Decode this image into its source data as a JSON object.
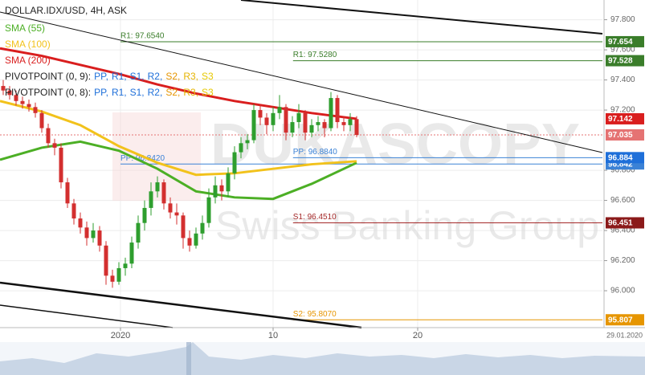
{
  "chart_data": {
    "type": "candlestick",
    "title": "DOLLAR.IDX/USD, 4H, ASK",
    "up_color": "#2e9e2e",
    "down_color": "#d32f2f",
    "open": [
      97.36,
      97.33,
      97.3,
      97.26,
      97.24,
      97.22,
      97.18,
      97.08,
      96.98,
      96.95,
      96.72,
      96.58,
      96.48,
      96.42,
      96.35,
      96.4,
      96.3,
      96.1,
      96.06,
      96.15,
      96.18,
      96.32,
      96.45,
      96.55,
      96.66,
      96.72,
      96.58,
      96.52,
      96.5,
      96.35,
      96.3,
      96.38,
      96.45,
      96.62,
      96.7,
      96.66,
      96.78,
      96.92,
      96.98,
      97.0,
      97.2,
      97.15,
      97.1,
      97.18,
      97.22,
      97.05,
      97.12,
      97.18,
      97.05,
      97.1,
      97.12,
      97.08,
      97.28,
      97.12,
      97.1,
      97.14
    ],
    "high": [
      97.4,
      97.36,
      97.33,
      97.29,
      97.27,
      97.25,
      97.2,
      97.11,
      97.01,
      96.98,
      96.75,
      96.61,
      96.52,
      96.46,
      96.45,
      96.43,
      96.33,
      96.14,
      96.19,
      96.22,
      96.36,
      96.5,
      96.6,
      96.72,
      96.76,
      96.74,
      96.62,
      96.58,
      96.52,
      96.4,
      96.42,
      96.5,
      96.68,
      96.76,
      96.74,
      96.82,
      96.96,
      97.02,
      97.04,
      97.24,
      97.24,
      97.18,
      97.22,
      97.3,
      97.24,
      97.16,
      97.24,
      97.2,
      97.14,
      97.16,
      97.14,
      97.32,
      97.3,
      97.16,
      97.18,
      97.16
    ],
    "low": [
      97.3,
      97.27,
      97.23,
      97.21,
      97.19,
      97.15,
      97.05,
      96.95,
      96.9,
      96.68,
      96.55,
      96.44,
      96.38,
      96.3,
      96.32,
      96.26,
      96.04,
      96.02,
      96.04,
      96.1,
      96.15,
      96.28,
      96.4,
      96.5,
      96.62,
      96.54,
      96.48,
      96.44,
      96.28,
      96.26,
      96.28,
      96.34,
      96.42,
      96.58,
      96.6,
      96.62,
      96.74,
      96.88,
      96.94,
      96.98,
      97.1,
      97.04,
      97.06,
      97.14,
      97.0,
      97.02,
      97.08,
      97.0,
      97.02,
      97.06,
      97.02,
      97.06,
      97.08,
      97.06,
      97.06,
      97.02
    ],
    "close": [
      97.33,
      97.3,
      97.26,
      97.24,
      97.22,
      97.18,
      97.08,
      96.98,
      96.95,
      96.72,
      96.58,
      96.48,
      96.42,
      96.35,
      96.4,
      96.3,
      96.1,
      96.06,
      96.15,
      96.18,
      96.32,
      96.45,
      96.55,
      96.66,
      96.72,
      96.58,
      96.52,
      96.5,
      96.35,
      96.3,
      96.38,
      96.45,
      96.62,
      96.7,
      96.66,
      96.78,
      96.92,
      96.98,
      97.0,
      97.2,
      97.15,
      97.1,
      97.18,
      97.22,
      97.05,
      97.12,
      97.18,
      97.05,
      97.1,
      97.12,
      97.08,
      97.28,
      97.12,
      97.1,
      97.14,
      97.035
    ],
    "indicators": [
      {
        "name": "SMA (55)",
        "color": "#4caf25",
        "x": [
          -0.5,
          6,
          12,
          18,
          24,
          30,
          36,
          42,
          48,
          55
        ],
        "values": [
          96.87,
          96.95,
          96.99,
          96.93,
          96.81,
          96.66,
          96.62,
          96.61,
          96.71,
          96.85
        ]
      },
      {
        "name": "SMA (100)",
        "color": "#f2c21b",
        "x": [
          -0.5,
          6,
          12,
          18,
          24,
          30,
          36,
          42,
          48,
          55
        ],
        "values": [
          97.26,
          97.19,
          97.1,
          96.96,
          96.85,
          96.77,
          96.78,
          96.81,
          96.84,
          96.86
        ]
      },
      {
        "name": "SMA (200)",
        "color": "#d91e1e",
        "x": [
          -0.5,
          6,
          12,
          18,
          24,
          30,
          36,
          42,
          48,
          55
        ],
        "values": [
          97.61,
          97.56,
          97.5,
          97.44,
          97.37,
          97.31,
          97.26,
          97.22,
          97.18,
          97.142
        ]
      }
    ],
    "pivot_legend": [
      {
        "label": "PIVOTPOINT (0, 9):",
        "items": [
          {
            "text": "PP,",
            "color": "#1e6fd9"
          },
          {
            "text": "R1,",
            "color": "#1e6fd9"
          },
          {
            "text": "S1,",
            "color": "#1e6fd9"
          },
          {
            "text": "R2,",
            "color": "#1e6fd9"
          },
          {
            "text": "S2,",
            "color": "#e69500"
          },
          {
            "text": "R3,",
            "color": "#e6b400"
          },
          {
            "text": "S3",
            "color": "#e6c800"
          }
        ]
      },
      {
        "label": "PIVOTPOINT (0, 8):",
        "items": [
          {
            "text": "PP,",
            "color": "#1e6fd9"
          },
          {
            "text": "R1,",
            "color": "#1e6fd9"
          },
          {
            "text": "S1,",
            "color": "#1e6fd9"
          },
          {
            "text": "R2,",
            "color": "#1e6fd9"
          },
          {
            "text": "S2,",
            "color": "#e69500"
          },
          {
            "text": "R3,",
            "color": "#e6b400"
          },
          {
            "text": "S3",
            "color": "#e6c800"
          }
        ]
      }
    ],
    "pivots": [
      {
        "label": "R1: 97.6540",
        "value": 97.654,
        "x0": 18.25,
        "color": "#3a7d2a"
      },
      {
        "label": "PP: 96.8420",
        "value": 96.842,
        "x0": 18.25,
        "color": "#3b82d6"
      },
      {
        "label": "R1: 97.5280",
        "value": 97.528,
        "x0": 45.1,
        "color": "#3a7d2a"
      },
      {
        "label": "PP: 96.8840",
        "value": 96.884,
        "x0": 45.1,
        "color": "#3b82d6"
      },
      {
        "label": "S1: 96.4510",
        "value": 96.451,
        "x0": 45.1,
        "color": "#a52a2a"
      },
      {
        "label": "S2: 95.8070",
        "value": 95.807,
        "x0": 45.1,
        "color": "#e69500"
      }
    ],
    "current": {
      "value": 97.035,
      "label": "97.035",
      "color": "#e57373"
    },
    "price_tags": [
      {
        "value": 97.654,
        "label": "97.654",
        "color": "#3a7d2a"
      },
      {
        "value": 97.528,
        "label": "97.528",
        "color": "#3a7d2a"
      },
      {
        "value": 97.142,
        "label": "97.142",
        "color": "#d91e1e"
      },
      {
        "value": 96.842,
        "label": "96.842",
        "color": "#3b82d6"
      },
      {
        "value": 96.884,
        "label": "96.884",
        "color": "#1e6fd9"
      },
      {
        "value": 96.451,
        "label": "96.451",
        "color": "#8b1a1a"
      },
      {
        "value": 95.807,
        "label": "95.807",
        "color": "#e69500"
      }
    ],
    "xlim": [
      -0.5,
      93.25
    ],
    "xticks": [
      {
        "value": 18.25,
        "label": "2020"
      },
      {
        "value": 42,
        "label": "10"
      },
      {
        "value": 64.5,
        "label": "20"
      }
    ],
    "ylim": [
      95.755,
      97.931
    ],
    "yticks": [
      {
        "value": 96.0,
        "label": "96.000"
      },
      {
        "value": 96.2,
        "label": "96.200"
      },
      {
        "value": 96.4,
        "label": "96.400"
      },
      {
        "value": 96.6,
        "label": "96.600"
      },
      {
        "value": 96.8,
        "label": "96.800"
      },
      {
        "value": 97.2,
        "label": "97.200"
      },
      {
        "value": 97.4,
        "label": "97.400"
      },
      {
        "value": 97.6,
        "label": "97.600"
      },
      {
        "value": 97.8,
        "label": "97.800"
      }
    ],
    "grid": true,
    "date_label": "29.01.2020",
    "watermark": [
      "DUKASCOPY",
      "Swiss Banking Group"
    ]
  }
}
